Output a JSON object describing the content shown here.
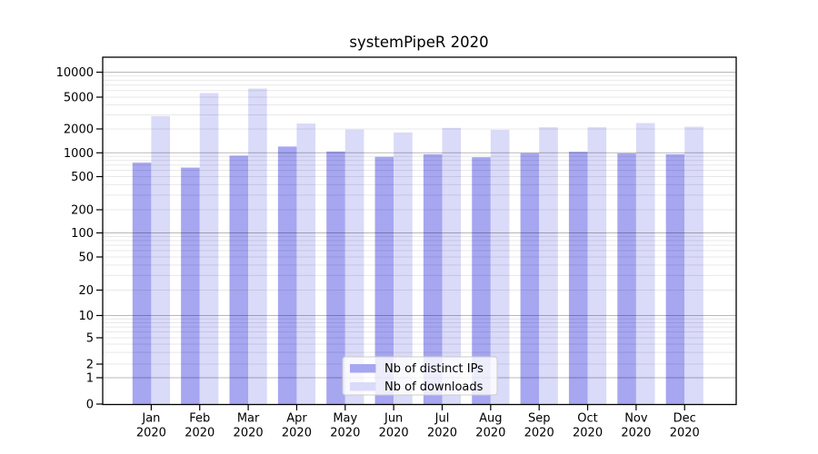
{
  "chart_data": {
    "type": "bar",
    "title": "systemPipeR 2020",
    "categories": [
      "Jan",
      "Feb",
      "Mar",
      "Apr",
      "May",
      "Jun",
      "Jul",
      "Aug",
      "Sep",
      "Oct",
      "Nov",
      "Dec"
    ],
    "x_tick_second_line": "2020",
    "series": [
      {
        "name": "Nb of distinct IPs",
        "color": "#a6a6f1",
        "values": [
          750,
          650,
          920,
          1200,
          1040,
          890,
          960,
          880,
          990,
          1030,
          985,
          960
        ]
      },
      {
        "name": "Nb of downloads",
        "color": "#dadaf9",
        "values": [
          2900,
          5600,
          6350,
          2340,
          1970,
          1800,
          2060,
          1950,
          2100,
          2100,
          2370,
          2130
        ]
      }
    ],
    "yscale": "symlog",
    "ylim": [
      0,
      10000
    ],
    "y_tick_labels": [
      "0",
      "1",
      "2",
      "5",
      "10",
      "20",
      "50",
      "100",
      "200",
      "500",
      "1000",
      "2000",
      "5000",
      "10000"
    ],
    "xlabel": "",
    "ylabel": "",
    "grid": "horizontal major and minor, drawn over bars",
    "legend_position": "lower center"
  },
  "style": {
    "background": "#ffffff",
    "axis_color": "#000000",
    "major_grid_color": "rgba(0,0,0,0.28)",
    "minor_grid_color": "rgba(0,0,0,0.09)",
    "legend_border_color": "#cccccc",
    "legend_background": "rgba(255,255,255,0.8)"
  }
}
